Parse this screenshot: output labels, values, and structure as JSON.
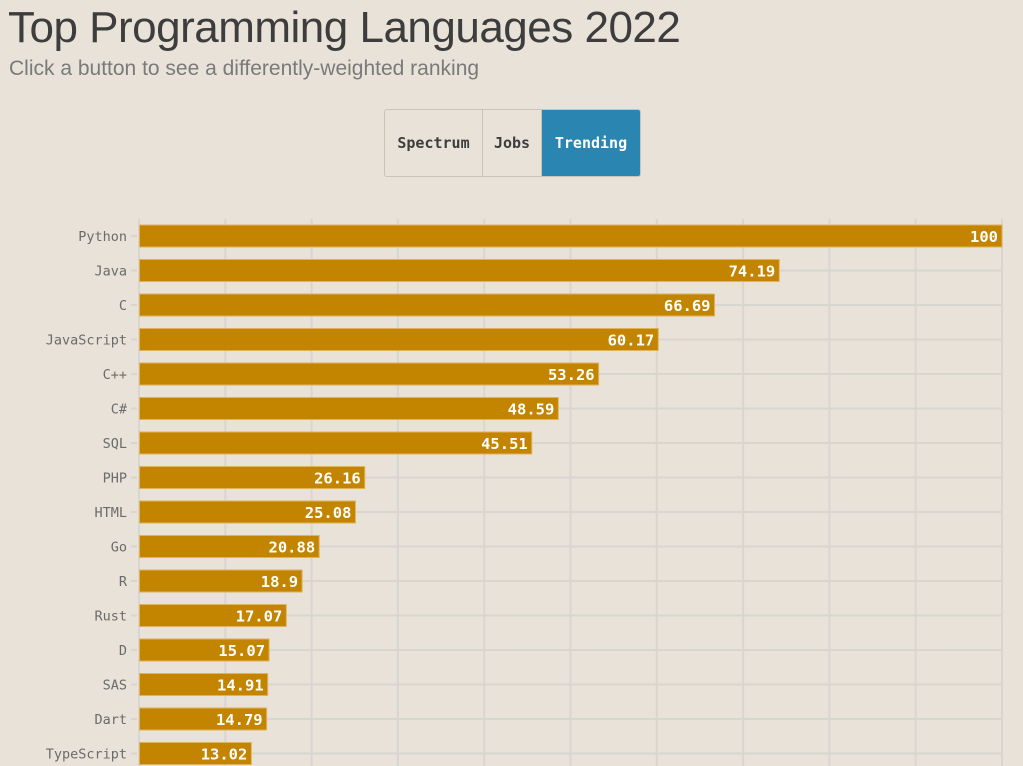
{
  "header": {
    "title": "Top Programming Languages 2022",
    "subtitle": "Click a button to see a differently-weighted ranking"
  },
  "buttons": [
    {
      "label": "Spectrum",
      "active": false
    },
    {
      "label": "Jobs",
      "active": false
    },
    {
      "label": "Trending",
      "active": true
    }
  ],
  "colors": {
    "bar": "#c38400",
    "bar_border": "#e0b25a",
    "grid": "#d9d6d1",
    "active_button": "#2a85b0",
    "background": "#e8e2d9"
  },
  "chart_data": {
    "type": "bar",
    "orientation": "horizontal",
    "title": "Top Programming Languages 2022",
    "xlim": [
      0,
      100
    ],
    "grid": true,
    "categories": [
      "Python",
      "Java",
      "C",
      "JavaScript",
      "C++",
      "C#",
      "SQL",
      "PHP",
      "HTML",
      "Go",
      "R",
      "Rust",
      "D",
      "SAS",
      "Dart",
      "TypeScript"
    ],
    "values": [
      100,
      74.19,
      66.69,
      60.17,
      53.26,
      48.59,
      45.51,
      26.16,
      25.08,
      20.88,
      18.9,
      17.07,
      15.07,
      14.91,
      14.79,
      13.02
    ],
    "value_labels": [
      "100",
      "74.19",
      "66.69",
      "60.17",
      "53.26",
      "48.59",
      "45.51",
      "26.16",
      "25.08",
      "20.88",
      "18.9",
      "17.07",
      "15.07",
      "14.91",
      "14.79",
      "13.02"
    ]
  }
}
